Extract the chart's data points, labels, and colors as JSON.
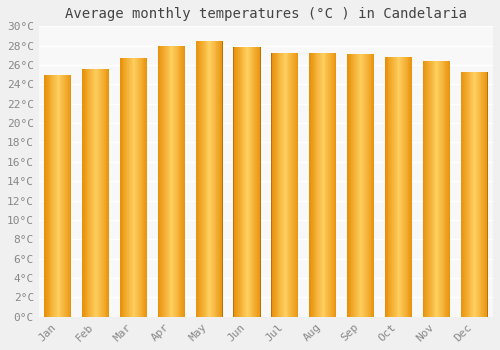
{
  "months": [
    "Jan",
    "Feb",
    "Mar",
    "Apr",
    "May",
    "Jun",
    "Jul",
    "Aug",
    "Sep",
    "Oct",
    "Nov",
    "Dec"
  ],
  "temperatures": [
    25.0,
    25.6,
    26.7,
    28.0,
    28.5,
    27.9,
    27.2,
    27.2,
    27.1,
    26.8,
    26.4,
    25.3
  ],
  "title": "Average monthly temperatures (°C ) in Candelaria",
  "ylim": [
    0,
    30
  ],
  "ytick_step": 2,
  "bar_color_center": "#FFD060",
  "bar_color_edge": "#E8900A",
  "bg_color": "#F0F0F0",
  "plot_bg_color": "#F8F8F8",
  "grid_color": "#FFFFFF",
  "title_fontsize": 10,
  "tick_fontsize": 8,
  "font_family": "monospace"
}
